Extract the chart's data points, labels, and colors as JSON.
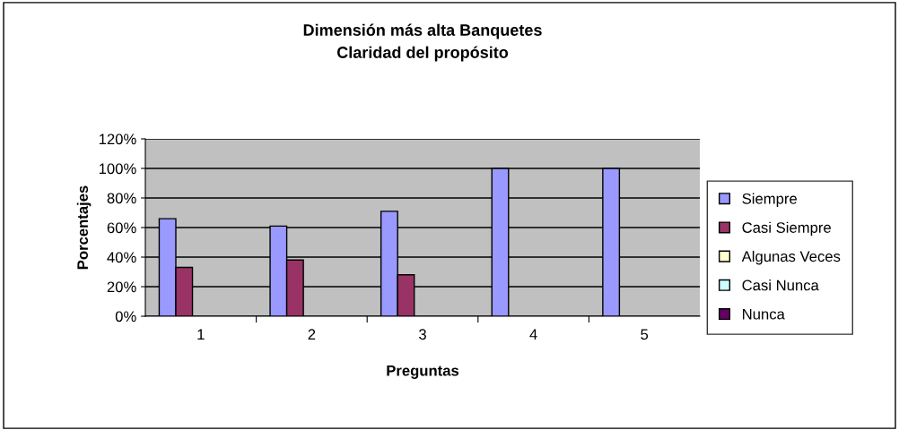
{
  "chart_data": {
    "type": "bar",
    "title": "Dimensión más alta Banquetes\nClaridad del propósito",
    "xlabel": "Preguntas",
    "ylabel": "Porcentajes",
    "categories": [
      "1",
      "2",
      "3",
      "4",
      "5"
    ],
    "series": [
      {
        "name": "Siempre",
        "color": "#9999ff",
        "values": [
          66,
          61,
          71,
          100,
          100
        ]
      },
      {
        "name": "Casi Siempre",
        "color": "#993366",
        "values": [
          33,
          38,
          28,
          null,
          null
        ]
      },
      {
        "name": "Algunas Veces",
        "color": "#ffffcc",
        "values": [
          null,
          null,
          null,
          null,
          null
        ]
      },
      {
        "name": "Casi Nunca",
        "color": "#ccffff",
        "values": [
          null,
          null,
          null,
          null,
          null
        ]
      },
      {
        "name": "Nunca",
        "color": "#660066",
        "values": [
          null,
          null,
          null,
          null,
          null
        ]
      }
    ],
    "ylim": [
      0,
      120
    ],
    "yticks": [
      {
        "value": 0,
        "label": "0%"
      },
      {
        "value": 20,
        "label": "20%"
      },
      {
        "value": 40,
        "label": "40%"
      },
      {
        "value": 60,
        "label": "60%"
      },
      {
        "value": 80,
        "label": "80%"
      },
      {
        "value": 100,
        "label": "100%"
      },
      {
        "value": 120,
        "label": "120%"
      }
    ],
    "grid": "y",
    "legend": "right"
  }
}
